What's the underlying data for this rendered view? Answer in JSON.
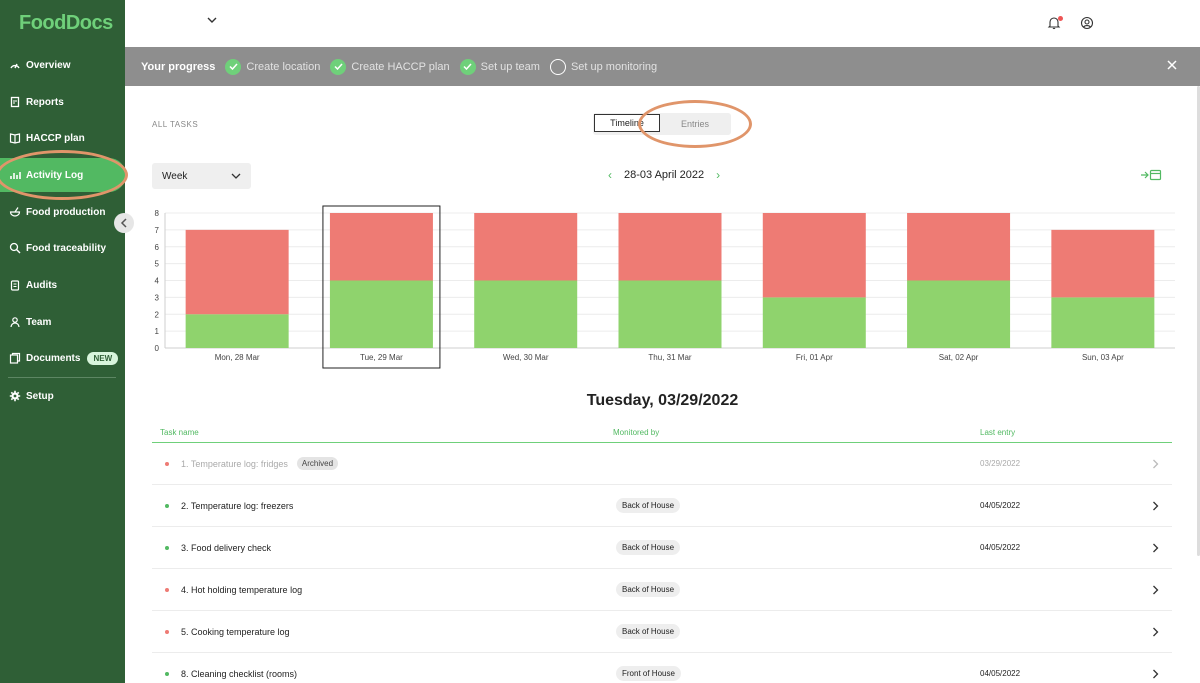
{
  "app": {
    "logo": "FoodDocs"
  },
  "sidebar": {
    "items": [
      {
        "label": "Overview",
        "icon": "gauge-icon"
      },
      {
        "label": "Reports",
        "icon": "report-icon"
      },
      {
        "label": "HACCP plan",
        "icon": "book-icon"
      },
      {
        "label": "Activity Log",
        "icon": "chart-icon",
        "active": true
      },
      {
        "label": "Food production",
        "icon": "bowl-icon"
      },
      {
        "label": "Food traceability",
        "icon": "search-icon"
      },
      {
        "label": "Audits",
        "icon": "clipboard-icon"
      },
      {
        "label": "Team",
        "icon": "person-icon"
      },
      {
        "label": "Documents",
        "icon": "documents-icon",
        "badge": "NEW"
      },
      {
        "label": "Setup",
        "icon": "gear-icon"
      }
    ]
  },
  "progress": {
    "label": "Your progress",
    "steps": [
      {
        "label": "Create location",
        "done": true
      },
      {
        "label": "Create HACCP plan",
        "done": true
      },
      {
        "label": "Set up team",
        "done": true
      },
      {
        "label": "Set up monitoring",
        "done": false
      }
    ]
  },
  "main": {
    "all_tasks_label": "ALL TASKS",
    "toggle": {
      "timeline": "Timeline",
      "entries": "Entries"
    },
    "period_select": "Week",
    "date_range": "28-03 April 2022",
    "day_title": "Tuesday, 03/29/2022"
  },
  "chart_data": {
    "type": "bar",
    "stacked": true,
    "categories": [
      "Mon, 28 Mar",
      "Tue, 29 Mar",
      "Wed, 30 Mar",
      "Thu, 31 Mar",
      "Fri, 01 Apr",
      "Sat, 02 Apr",
      "Sun, 03 Apr"
    ],
    "series": [
      {
        "values": [
          2,
          4,
          4,
          4,
          3,
          4,
          3
        ],
        "color": "#8fd36d"
      },
      {
        "values": [
          5,
          4,
          4,
          4,
          5,
          4,
          4
        ],
        "color": "#ee7b74"
      }
    ],
    "ylim": [
      0,
      8
    ],
    "yticks": [
      0,
      1,
      2,
      3,
      4,
      5,
      6,
      7,
      8
    ],
    "selected": "Tue, 29 Mar",
    "grid": true
  },
  "table": {
    "headers": {
      "task": "Task name",
      "monitored": "Monitored by",
      "last": "Last entry"
    },
    "rows": [
      {
        "name": "1. Temperature log: fridges",
        "badge": "Archived",
        "monitored": "",
        "last": "03/29/2022",
        "status": "red",
        "archived": true
      },
      {
        "name": "2. Temperature log: freezers",
        "badge": "",
        "monitored": "Back of House",
        "last": "04/05/2022",
        "status": "green"
      },
      {
        "name": "3. Food delivery check",
        "badge": "",
        "monitored": "Back of House",
        "last": "04/05/2022",
        "status": "green"
      },
      {
        "name": "4. Hot holding temperature log",
        "badge": "",
        "monitored": "Back of House",
        "last": "",
        "status": "red"
      },
      {
        "name": "5. Cooking temperature log",
        "badge": "",
        "monitored": "Back of House",
        "last": "",
        "status": "red"
      },
      {
        "name": "8. Cleaning checklist (rooms)",
        "badge": "",
        "monitored": "Front of House",
        "last": "04/05/2022",
        "status": "green"
      }
    ]
  },
  "colors": {
    "sidebar": "#2f5f36",
    "accent": "#52b962",
    "red": "#ee7b74",
    "green": "#8fd36d"
  }
}
